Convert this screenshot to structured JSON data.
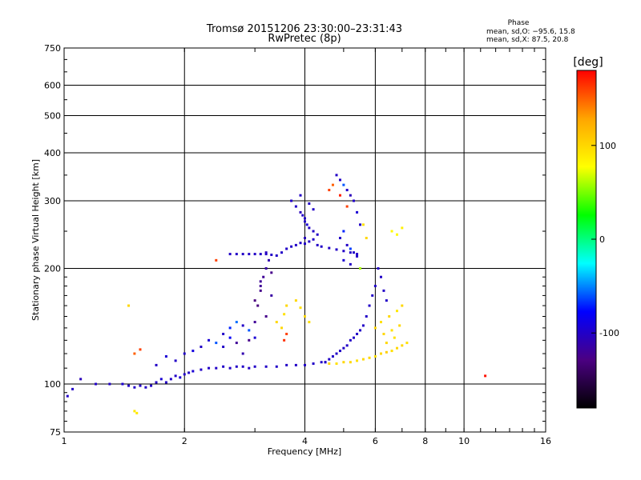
{
  "chart_data": {
    "type": "scatter",
    "title": "Tromsø 20151206 23:30:00–23:31:43",
    "subtitle": "RwPretec (8p)",
    "xlabel": "Frequency [MHz]",
    "ylabel": "Stationary phase Virtual Height [km]",
    "x_scale": "log",
    "y_scale": "log",
    "xlim": [
      1,
      16
    ],
    "ylim": [
      75,
      750
    ],
    "x_ticks": [
      1,
      2,
      4,
      6,
      8,
      10,
      16
    ],
    "y_ticks": [
      75,
      100,
      200,
      300,
      400,
      500,
      600,
      750
    ],
    "grid": true,
    "phase_box": {
      "title": "Phase",
      "line_o": "mean, sd,O: −95.6, 15.8",
      "line_x": "mean, sd,X:  87.5, 20.8"
    },
    "colorbar": {
      "label": "[deg]",
      "range": [
        -180,
        180
      ],
      "ticks": [
        100,
        0,
        -100
      ],
      "placement": "right",
      "colors": [
        "#000000",
        "#4b0082",
        "#0000ff",
        "#00ffff",
        "#00ff00",
        "#ffff00",
        "#ffa500",
        "#ff0000"
      ]
    },
    "series": [
      {
        "x": [
          1.02,
          1.05,
          1.1,
          1.2,
          1.3,
          1.4,
          1.45,
          1.5,
          1.55,
          1.6,
          1.65,
          1.7,
          1.75,
          1.8,
          1.85,
          1.9,
          1.95,
          2.0,
          2.05,
          2.1,
          2.2,
          2.3,
          2.4,
          2.5,
          2.6,
          2.7,
          2.8,
          2.9,
          3.0,
          3.2,
          3.4,
          3.6,
          3.8,
          4.0,
          4.2,
          4.4,
          4.5
        ],
        "y": [
          93,
          97,
          103,
          100,
          100,
          100,
          99,
          98,
          99,
          98,
          99,
          101,
          103,
          101,
          103,
          105,
          104,
          106,
          107,
          108,
          109,
          110,
          110,
          111,
          110,
          111,
          111,
          110,
          111,
          111,
          111,
          112,
          112,
          112,
          113,
          114,
          114
        ],
        "phase": [
          -100,
          -100,
          -105,
          -100,
          -100,
          -95,
          -100,
          -100,
          -100,
          -100,
          -100,
          -100,
          -95,
          -100,
          -100,
          -100,
          -95,
          -100,
          -100,
          -95,
          -100,
          -100,
          -100,
          -100,
          -100,
          -100,
          -100,
          -100,
          -100,
          -100,
          -100,
          -100,
          -100,
          -100,
          -100,
          -100,
          -100
        ]
      },
      {
        "x": [
          1.7,
          1.8,
          1.9,
          2.0,
          2.1,
          2.2,
          2.3,
          2.4,
          2.5,
          2.6,
          2.7,
          2.8,
          2.9,
          3.0,
          2.5,
          2.6,
          2.7,
          2.8
        ],
        "y": [
          112,
          118,
          115,
          120,
          122,
          125,
          130,
          128,
          135,
          140,
          145,
          142,
          138,
          132,
          125,
          132,
          128,
          120
        ],
        "phase": [
          -100,
          -95,
          -100,
          -100,
          -90,
          -100,
          -95,
          -60,
          -100,
          -70,
          -55,
          -100,
          -60,
          -95,
          -100,
          -80,
          -120,
          -110
        ]
      },
      {
        "x": [
          2.9,
          3.0,
          3.05,
          3.1,
          3.15,
          3.2,
          3.25,
          3.3,
          3.1,
          3.0,
          3.2,
          3.3,
          3.1,
          3.2
        ],
        "y": [
          130,
          145,
          160,
          175,
          190,
          200,
          210,
          195,
          180,
          165,
          150,
          170,
          185,
          220
        ],
        "phase": [
          -125,
          -120,
          -130,
          -125,
          -120,
          -115,
          -110,
          -125,
          -120,
          -130,
          -125,
          -115,
          -120,
          -105
        ]
      },
      {
        "x": [
          2.6,
          2.7,
          2.8,
          2.9,
          3.0,
          3.1,
          3.2,
          3.3,
          3.4,
          3.5,
          3.6,
          3.7,
          3.8,
          3.9,
          4.0,
          4.1,
          4.2,
          4.3,
          4.4,
          4.6,
          4.8,
          5.0,
          5.2,
          5.4
        ],
        "y": [
          218,
          218,
          218,
          218,
          218,
          218,
          218,
          217,
          216,
          220,
          225,
          228,
          230,
          233,
          232,
          235,
          238,
          230,
          228,
          226,
          224,
          222,
          220,
          218
        ],
        "phase": [
          -100,
          -100,
          -100,
          -100,
          -100,
          -100,
          -100,
          -100,
          -100,
          -100,
          -100,
          -100,
          -100,
          -100,
          -100,
          -100,
          -100,
          -100,
          -100,
          -100,
          -100,
          -100,
          -100,
          -100
        ]
      },
      {
        "x": [
          3.7,
          3.8,
          3.9,
          4.0,
          4.05,
          4.1,
          4.2,
          4.3,
          4.0,
          3.9,
          4.1,
          4.2,
          4.0,
          3.95
        ],
        "y": [
          300,
          290,
          280,
          270,
          260,
          255,
          250,
          245,
          240,
          310,
          295,
          285,
          265,
          275
        ],
        "phase": [
          -100,
          -100,
          -105,
          -100,
          -95,
          -100,
          -100,
          -100,
          -105,
          -100,
          -100,
          -100,
          -100,
          -100
        ]
      },
      {
        "x": [
          4.8,
          4.9,
          5.0,
          5.1,
          5.2,
          5.3,
          5.4,
          5.5,
          5.0,
          4.9,
          5.1,
          5.2,
          5.3,
          5.4,
          5.0,
          5.2,
          5.5,
          5.6,
          5.7
        ],
        "y": [
          350,
          340,
          330,
          320,
          310,
          300,
          280,
          260,
          250,
          240,
          230,
          225,
          220,
          215,
          210,
          205,
          200,
          260,
          240
        ],
        "phase": [
          -100,
          -100,
          -60,
          -100,
          -105,
          -100,
          -95,
          -100,
          -70,
          -100,
          -100,
          -65,
          -100,
          -100,
          -95,
          -100,
          60,
          95,
          100
        ]
      },
      {
        "x": [
          4.5,
          4.6,
          4.7,
          4.8,
          4.9,
          5.0,
          5.1,
          5.2,
          5.3,
          5.4,
          5.5,
          5.6,
          5.7,
          5.8,
          5.9,
          6.0,
          6.1,
          6.2,
          6.3,
          6.4
        ],
        "y": [
          114,
          116,
          118,
          120,
          122,
          124,
          126,
          130,
          132,
          135,
          138,
          142,
          150,
          160,
          170,
          180,
          200,
          190,
          175,
          165
        ],
        "phase": [
          -100,
          -100,
          -100,
          -100,
          -100,
          -100,
          -100,
          -100,
          -100,
          -100,
          -100,
          -100,
          -100,
          -100,
          -100,
          -100,
          -100,
          -100,
          -100,
          -100
        ]
      },
      {
        "x": [
          4.6,
          4.8,
          5.0,
          5.2,
          5.4,
          5.6,
          5.8,
          6.0,
          6.2,
          6.4,
          6.6,
          6.8,
          7.0,
          7.2,
          6.0,
          6.2,
          6.5,
          6.8,
          7.0,
          6.3,
          6.6,
          6.9,
          6.4,
          6.7
        ],
        "y": [
          113,
          113,
          114,
          114,
          115,
          116,
          117,
          118,
          120,
          121,
          122,
          124,
          126,
          128,
          140,
          145,
          150,
          155,
          160,
          135,
          138,
          142,
          128,
          132
        ],
        "phase": [
          100,
          95,
          100,
          100,
          95,
          100,
          100,
          95,
          100,
          105,
          95,
          100,
          100,
          95,
          100,
          95,
          100,
          90,
          100,
          100,
          95,
          100,
          100,
          95
        ]
      },
      {
        "x": [
          3.4,
          3.5,
          3.55,
          3.6,
          3.8,
          3.9,
          4.0,
          4.1,
          1.45,
          1.5,
          1.52,
          6.6,
          6.8,
          7.0
        ],
        "y": [
          145,
          140,
          152,
          160,
          165,
          158,
          150,
          145,
          160,
          85,
          84,
          250,
          245,
          255
        ],
        "phase": [
          100,
          100,
          95,
          100,
          100,
          95,
          100,
          95,
          100,
          90,
          90,
          80,
          80,
          85
        ]
      },
      {
        "x": [
          1.5,
          1.55,
          2.4,
          3.55,
          3.6,
          4.6,
          4.7,
          4.9,
          5.1,
          11.3
        ],
        "y": [
          120,
          123,
          210,
          130,
          135,
          320,
          330,
          310,
          290,
          105
        ],
        "phase": [
          150,
          160,
          160,
          165,
          160,
          160,
          150,
          170,
          160,
          175
        ]
      }
    ]
  }
}
